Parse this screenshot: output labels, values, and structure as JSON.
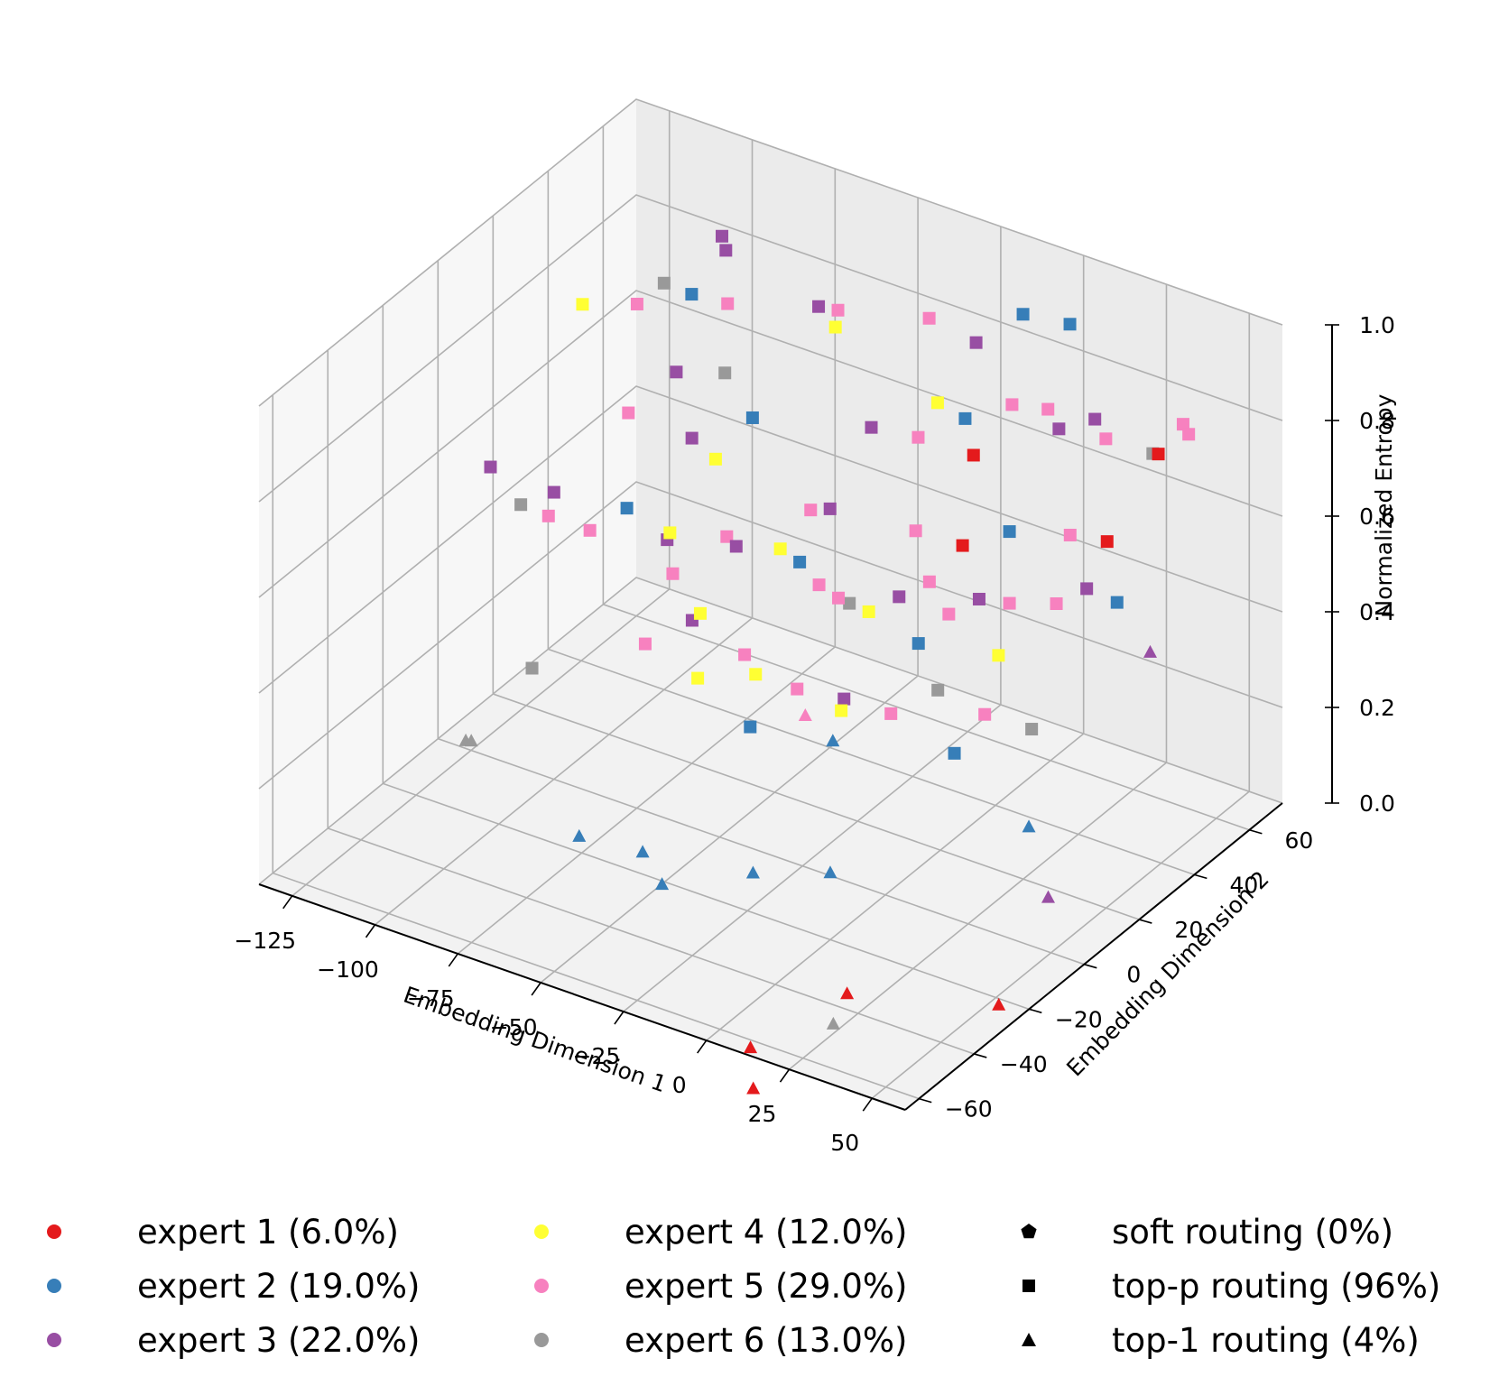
{
  "chart_data": {
    "type": "scatter",
    "dimensions": 3,
    "xlabel": "Embedding Dimension 1",
    "ylabel": "Embedding Dimension 2",
    "zlabel": "Normalized Entropy",
    "xlim": [
      -135,
      60
    ],
    "ylim": [
      -65,
      72
    ],
    "zlim": [
      0,
      1.0
    ],
    "xticks": [
      -125,
      -100,
      -75,
      -50,
      -25,
      0,
      25,
      50
    ],
    "xtick_labels": [
      "−125",
      "−100",
      "−75",
      "−50",
      "−25",
      "0",
      "25",
      "50"
    ],
    "yticks": [
      -60,
      -40,
      -20,
      0,
      20,
      40,
      60
    ],
    "ytick_labels": [
      "−60",
      "−40",
      "−20",
      "0",
      "20",
      "40",
      "60"
    ],
    "zticks": [
      0.0,
      0.2,
      0.4,
      0.6,
      0.8,
      1.0
    ],
    "ztick_labels": [
      "0.0",
      "0.2",
      "0.4",
      "0.6",
      "0.8",
      "1.0"
    ],
    "grid": true,
    "legend_position": "bottom",
    "experts": [
      {
        "name": "expert 1 (6.0%)",
        "color": "#e41a1c"
      },
      {
        "name": "expert 2 (19.0%)",
        "color": "#377eb8"
      },
      {
        "name": "expert 3 (22.0%)",
        "color": "#984ea3"
      },
      {
        "name": "expert 4 (12.0%)",
        "color": "#ffff33"
      },
      {
        "name": "expert 5 (29.0%)",
        "color": "#f781bf"
      },
      {
        "name": "expert 6 (13.0%)",
        "color": "#999999"
      }
    ],
    "routings": [
      {
        "name": "soft routing (0%)",
        "marker": "pentagon"
      },
      {
        "name": "top-p routing (96%)",
        "marker": "square"
      },
      {
        "name": "top-1 routing (4%)",
        "marker": "triangle"
      }
    ],
    "points": [
      {
        "x": -95,
        "y": 55,
        "z": 0.89,
        "e": 3,
        "m": "square"
      },
      {
        "x": -93,
        "y": 54,
        "z": 0.87,
        "e": 3,
        "m": "square"
      },
      {
        "x": -104,
        "y": 35,
        "z": 0.82,
        "e": 5,
        "m": "square"
      },
      {
        "x": -100,
        "y": 40,
        "z": 0.85,
        "e": 6,
        "m": "square"
      },
      {
        "x": -108,
        "y": 20,
        "z": 0.88,
        "e": 4,
        "m": "square"
      },
      {
        "x": -100,
        "y": 50,
        "z": 0.78,
        "e": 2,
        "m": "square"
      },
      {
        "x": -85,
        "y": 45,
        "z": 0.82,
        "e": 5,
        "m": "square"
      },
      {
        "x": -70,
        "y": 60,
        "z": 0.78,
        "e": 3,
        "m": "square"
      },
      {
        "x": -60,
        "y": 55,
        "z": 0.82,
        "e": 5,
        "m": "square"
      },
      {
        "x": -88,
        "y": 30,
        "z": 0.74,
        "e": 3,
        "m": "square"
      },
      {
        "x": -80,
        "y": 38,
        "z": 0.72,
        "e": 6,
        "m": "square"
      },
      {
        "x": -75,
        "y": 20,
        "z": 0.68,
        "e": 3,
        "m": "square"
      },
      {
        "x": -90,
        "y": 15,
        "z": 0.72,
        "e": 5,
        "m": "square"
      },
      {
        "x": -72,
        "y": 25,
        "z": 0.62,
        "e": 4,
        "m": "square"
      },
      {
        "x": -65,
        "y": 30,
        "z": 0.7,
        "e": 2,
        "m": "square"
      },
      {
        "x": -100,
        "y": 0,
        "z": 0.6,
        "e": 3,
        "m": "square"
      },
      {
        "x": -110,
        "y": 0,
        "z": 0.55,
        "e": 6,
        "m": "square"
      },
      {
        "x": -115,
        "y": -5,
        "z": 0.64,
        "e": 3,
        "m": "square"
      },
      {
        "x": -95,
        "y": -8,
        "z": 0.6,
        "e": 5,
        "m": "square"
      },
      {
        "x": -85,
        "y": -5,
        "z": 0.58,
        "e": 5,
        "m": "square"
      },
      {
        "x": -78,
        "y": 0,
        "z": 0.62,
        "e": 2,
        "m": "square"
      },
      {
        "x": -70,
        "y": 5,
        "z": 0.55,
        "e": 3,
        "m": "square"
      },
      {
        "x": -65,
        "y": 0,
        "z": 0.6,
        "e": 4,
        "m": "square"
      },
      {
        "x": -60,
        "y": -5,
        "z": 0.55,
        "e": 5,
        "m": "square"
      },
      {
        "x": -52,
        "y": 5,
        "z": 0.6,
        "e": 5,
        "m": "square"
      },
      {
        "x": -45,
        "y": 0,
        "z": 0.62,
        "e": 3,
        "m": "square"
      },
      {
        "x": -40,
        "y": 10,
        "z": 0.58,
        "e": 4,
        "m": "square"
      },
      {
        "x": -35,
        "y": 15,
        "z": 0.65,
        "e": 5,
        "m": "square"
      },
      {
        "x": -30,
        "y": 5,
        "z": 0.6,
        "e": 2,
        "m": "square"
      },
      {
        "x": -25,
        "y": 10,
        "z": 0.7,
        "e": 3,
        "m": "square"
      },
      {
        "x": -20,
        "y": 0,
        "z": 0.6,
        "e": 5,
        "m": "square"
      },
      {
        "x": -15,
        "y": 5,
        "z": 0.55,
        "e": 6,
        "m": "square"
      },
      {
        "x": -10,
        "y": -5,
        "z": 0.62,
        "e": 5,
        "m": "square"
      },
      {
        "x": -5,
        "y": 0,
        "z": 0.58,
        "e": 4,
        "m": "square"
      },
      {
        "x": 0,
        "y": 5,
        "z": 0.6,
        "e": 3,
        "m": "square"
      },
      {
        "x": 5,
        "y": 10,
        "z": 0.62,
        "e": 5,
        "m": "square"
      },
      {
        "x": 10,
        "y": 0,
        "z": 0.55,
        "e": 2,
        "m": "square"
      },
      {
        "x": 15,
        "y": 5,
        "z": 0.6,
        "e": 5,
        "m": "square"
      },
      {
        "x": 20,
        "y": 10,
        "z": 0.62,
        "e": 3,
        "m": "square"
      },
      {
        "x": 25,
        "y": 15,
        "z": 0.6,
        "e": 5,
        "m": "square"
      },
      {
        "x": 30,
        "y": 5,
        "z": 0.55,
        "e": 4,
        "m": "square"
      },
      {
        "x": 35,
        "y": 20,
        "z": 0.6,
        "e": 5,
        "m": "square"
      },
      {
        "x": 40,
        "y": 25,
        "z": 0.62,
        "e": 3,
        "m": "square"
      },
      {
        "x": 45,
        "y": 30,
        "z": 0.58,
        "e": 2,
        "m": "square"
      },
      {
        "x": -60,
        "y": -15,
        "z": 0.45,
        "e": 5,
        "m": "square"
      },
      {
        "x": -50,
        "y": -10,
        "z": 0.5,
        "e": 3,
        "m": "square"
      },
      {
        "x": -40,
        "y": -20,
        "z": 0.45,
        "e": 4,
        "m": "square"
      },
      {
        "x": -30,
        "y": -15,
        "z": 0.5,
        "e": 5,
        "m": "square"
      },
      {
        "x": -20,
        "y": -25,
        "z": 0.42,
        "e": 2,
        "m": "square"
      },
      {
        "x": -10,
        "y": -20,
        "z": 0.5,
        "e": 5,
        "m": "square"
      },
      {
        "x": 0,
        "y": -15,
        "z": 0.48,
        "e": 3,
        "m": "square"
      },
      {
        "x": 10,
        "y": -10,
        "z": 0.45,
        "e": 5,
        "m": "square"
      },
      {
        "x": 20,
        "y": -5,
        "z": 0.5,
        "e": 6,
        "m": "square"
      },
      {
        "x": 30,
        "y": 0,
        "z": 0.45,
        "e": 5,
        "m": "square"
      },
      {
        "x": -25,
        "y": 25,
        "z": 0.8,
        "e": 3,
        "m": "square"
      },
      {
        "x": -15,
        "y": 30,
        "z": 0.78,
        "e": 5,
        "m": "square"
      },
      {
        "x": -5,
        "y": 35,
        "z": 0.82,
        "e": 2,
        "m": "square"
      },
      {
        "x": 5,
        "y": 40,
        "z": 0.85,
        "e": 5,
        "m": "square"
      },
      {
        "x": 15,
        "y": 45,
        "z": 0.8,
        "e": 3,
        "m": "square"
      },
      {
        "x": 25,
        "y": 50,
        "z": 0.78,
        "e": 5,
        "m": "square"
      },
      {
        "x": 35,
        "y": 55,
        "z": 0.75,
        "e": 6,
        "m": "square"
      },
      {
        "x": 40,
        "y": 60,
        "z": 0.8,
        "e": 5,
        "m": "square"
      },
      {
        "x": -5,
        "y": 25,
        "z": 0.9,
        "e": 4,
        "m": "square"
      },
      {
        "x": 10,
        "y": 20,
        "z": 0.85,
        "e": 1,
        "m": "square"
      },
      {
        "x": 20,
        "y": 35,
        "z": 0.9,
        "e": 5,
        "m": "square"
      },
      {
        "x": 30,
        "y": 40,
        "z": 0.88,
        "e": 3,
        "m": "square"
      },
      {
        "x": 45,
        "y": 45,
        "z": 0.82,
        "e": 1,
        "m": "square"
      },
      {
        "x": 50,
        "y": 50,
        "z": 0.85,
        "e": 5,
        "m": "square"
      },
      {
        "x": 5,
        "y": 5,
        "z": 0.75,
        "e": 5,
        "m": "square"
      },
      {
        "x": 15,
        "y": 10,
        "z": 0.72,
        "e": 1,
        "m": "square"
      },
      {
        "x": 25,
        "y": 15,
        "z": 0.75,
        "e": 2,
        "m": "square"
      },
      {
        "x": 35,
        "y": 25,
        "z": 0.72,
        "e": 5,
        "m": "square"
      },
      {
        "x": 42,
        "y": 30,
        "z": 0.7,
        "e": 1,
        "m": "square"
      },
      {
        "x": -40,
        "y": 30,
        "z": 0.95,
        "e": 4,
        "m": "square"
      },
      {
        "x": -20,
        "y": 40,
        "z": 0.97,
        "e": 5,
        "m": "square"
      },
      {
        "x": 0,
        "y": 50,
        "z": 0.98,
        "e": 2,
        "m": "square"
      },
      {
        "x": 10,
        "y": 55,
        "z": 0.96,
        "e": 2,
        "m": "square"
      },
      {
        "x": -10,
        "y": 45,
        "z": 0.92,
        "e": 3,
        "m": "square"
      },
      {
        "x": -60,
        "y": 5,
        "z": 0.42,
        "e": 4,
        "m": "square"
      },
      {
        "x": -35,
        "y": -5,
        "z": 0.4,
        "e": 4,
        "m": "square"
      },
      {
        "x": -5,
        "y": -10,
        "z": 0.42,
        "e": 4,
        "m": "square"
      },
      {
        "x": 25,
        "y": -5,
        "z": 0.38,
        "e": 2,
        "m": "square"
      },
      {
        "x": 40,
        "y": 5,
        "z": 0.42,
        "e": 6,
        "m": "square"
      },
      {
        "x": -90,
        "y": -20,
        "z": 0.35,
        "e": 6,
        "m": "square"
      },
      {
        "x": -55,
        "y": -45,
        "z": 0.2,
        "e": 2,
        "m": "triangle"
      },
      {
        "x": -40,
        "y": -40,
        "z": 0.18,
        "e": 2,
        "m": "triangle"
      },
      {
        "x": -30,
        "y": -45,
        "z": 0.16,
        "e": 2,
        "m": "triangle"
      },
      {
        "x": -15,
        "y": -30,
        "z": 0.15,
        "e": 2,
        "m": "triangle"
      },
      {
        "x": 0,
        "y": -20,
        "z": 0.14,
        "e": 2,
        "m": "triangle"
      },
      {
        "x": 35,
        "y": 10,
        "z": 0.18,
        "e": 2,
        "m": "triangle"
      },
      {
        "x": -20,
        "y": 5,
        "z": 0.25,
        "e": 2,
        "m": "triangle"
      },
      {
        "x": 45,
        "y": 5,
        "z": 0.08,
        "e": 3,
        "m": "triangle"
      },
      {
        "x": 55,
        "y": 30,
        "z": 0.5,
        "e": 3,
        "m": "triangle"
      },
      {
        "x": -110,
        "y": -20,
        "z": 0.15,
        "e": 6,
        "m": "triangle"
      },
      {
        "x": -110,
        "y": -18,
        "z": 0.14,
        "e": 6,
        "m": "triangle"
      },
      {
        "x": 30,
        "y": -50,
        "z": 0.1,
        "e": 1,
        "m": "triangle"
      },
      {
        "x": 30,
        "y": -55,
        "z": 0.06,
        "e": 6,
        "m": "triangle"
      },
      {
        "x": 5,
        "y": -55,
        "z": -0.05,
        "e": 1,
        "m": "triangle"
      },
      {
        "x": 10,
        "y": -60,
        "z": -0.1,
        "e": 1,
        "m": "triangle"
      },
      {
        "x": 55,
        "y": -25,
        "z": 0.02,
        "e": 1,
        "m": "triangle"
      },
      {
        "x": -20,
        "y": -5,
        "z": 0.35,
        "e": 5,
        "m": "triangle"
      }
    ]
  }
}
